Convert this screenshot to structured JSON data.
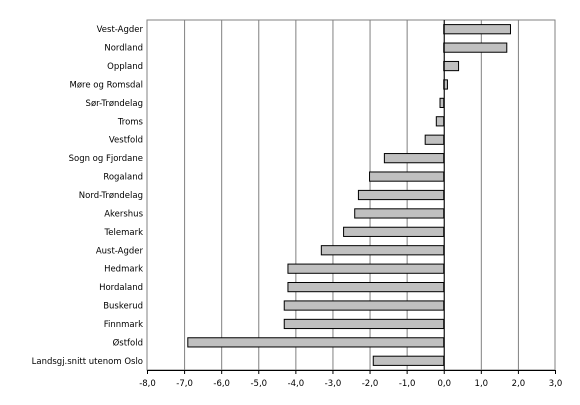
{
  "chart_data": {
    "type": "bar",
    "orientation": "horizontal",
    "title": "",
    "xlabel": "",
    "ylabel": "",
    "xlim": [
      -8,
      3
    ],
    "grid": "vertical",
    "legend": "none",
    "categories": [
      "Vest-Agder",
      "Nordland",
      "Oppland",
      "Møre og Romsdal",
      "Sør-Trøndelag",
      "Troms",
      "Vestfold",
      "Sogn og Fjordane",
      "Rogaland",
      "Nord-Trøndelag",
      "Akershus",
      "Telemark",
      "Aust-Agder",
      "Hedmark",
      "Hordaland",
      "Buskerud",
      "Finnmark",
      "Østfold",
      "Landsgj.snitt utenom Oslo"
    ],
    "values": [
      1.8,
      1.7,
      0.4,
      0.1,
      -0.1,
      -0.2,
      -0.5,
      -1.6,
      -2.0,
      -2.3,
      -2.4,
      -2.7,
      -3.3,
      -4.2,
      -4.2,
      -4.3,
      -4.3,
      -6.9,
      -1.9
    ],
    "ticks": [
      {
        "value": -8,
        "label": "-8,0"
      },
      {
        "value": -7,
        "label": "-7,0"
      },
      {
        "value": -6,
        "label": "-6,0"
      },
      {
        "value": -5,
        "label": "-5,0"
      },
      {
        "value": -4,
        "label": "-4,0"
      },
      {
        "value": -3,
        "label": "-3,0"
      },
      {
        "value": -2,
        "label": "-2,0"
      },
      {
        "value": -1,
        "label": "-1,0"
      },
      {
        "value": 0,
        "label": "0,0"
      },
      {
        "value": 1,
        "label": "1,0"
      },
      {
        "value": 2,
        "label": "2,0"
      },
      {
        "value": 3,
        "label": "3,0"
      }
    ],
    "colors": {
      "bar_fill": "#c0c0c0",
      "bar_stroke": "#000000",
      "grid": "#808080",
      "axis": "#000000",
      "frame": "#808080"
    }
  }
}
